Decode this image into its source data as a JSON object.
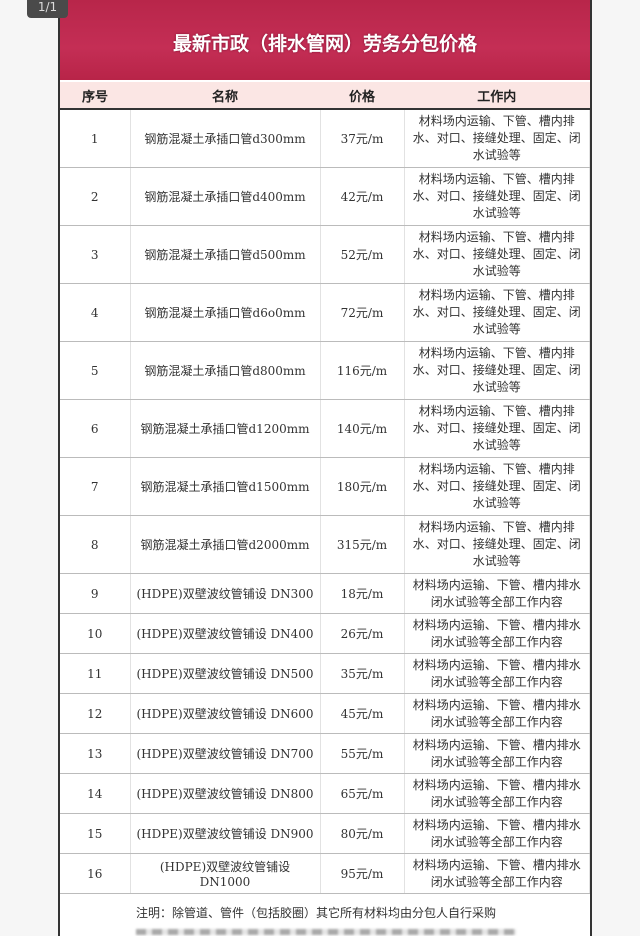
{
  "page_indicator": "1/1",
  "title": "最新市政（排水管网）劳务分包价格",
  "colors": {
    "title_band": "#c42e55",
    "header_bg": "#fbe6e4"
  },
  "columns": [
    "序号",
    "名称",
    "价格",
    "工作内"
  ],
  "rows": [
    {
      "no": "1",
      "name": "钢筋混凝土承插口管d300mm",
      "price": "37元/m",
      "work": "材料场内运输、下管、槽内排水、对口、接缝处理、固定、闭水试验等"
    },
    {
      "no": "2",
      "name": "钢筋混凝土承插口管d400mm",
      "price": "42元/m",
      "work": "材料场内运输、下管、槽内排水、对口、接缝处理、固定、闭水试验等"
    },
    {
      "no": "3",
      "name": "钢筋混凝土承插口管d500mm",
      "price": "52元/m",
      "work": "材料场内运输、下管、槽内排水、对口、接缝处理、固定、闭水试验等"
    },
    {
      "no": "4",
      "name": "钢筋混凝土承插口管d6o0mm",
      "price": "72元/m",
      "work": "材料场内运输、下管、槽内排水、对口、接缝处理、固定、闭水试验等"
    },
    {
      "no": "5",
      "name": "钢筋混凝土承插口管d800mm",
      "price": "116元/m",
      "work": "材料场内运输、下管、槽内排水、对口、接缝处理、固定、闭水试验等"
    },
    {
      "no": "6",
      "name": "钢筋混凝土承插口管d1200mm",
      "price": "140元/m",
      "work": "材料场内运输、下管、槽内排水、对口、接缝处理、固定、闭水试验等"
    },
    {
      "no": "7",
      "name": "钢筋混凝土承插口管d1500mm",
      "price": "180元/m",
      "work": "材料场内运输、下管、槽内排水、对口、接缝处理、固定、闭水试验等"
    },
    {
      "no": "8",
      "name": "钢筋混凝土承插口管d2000mm",
      "price": "315元/m",
      "work": "材料场内运输、下管、槽内排水、对口、接缝处理、固定、闭水试验等"
    },
    {
      "no": "9",
      "name": "(HDPE)双壁波纹管铺设 DN300",
      "price": "18元/m",
      "work": "材料场内运输、下管、槽内排水 闭水试验等全部工作内容"
    },
    {
      "no": "10",
      "name": "(HDPE)双壁波纹管铺设 DN400",
      "price": "26元/m",
      "work": "材料场内运输、下管、槽内排水 闭水试验等全部工作内容"
    },
    {
      "no": "11",
      "name": "(HDPE)双壁波纹管铺设 DN500",
      "price": "35元/m",
      "work": "材料场内运输、下管、槽内排水 闭水试验等全部工作内容"
    },
    {
      "no": "12",
      "name": "(HDPE)双壁波纹管铺设 DN600",
      "price": "45元/m",
      "work": "材料场内运输、下管、槽内排水 闭水试验等全部工作内容"
    },
    {
      "no": "13",
      "name": "(HDPE)双壁波纹管铺设 DN700",
      "price": "55元/m",
      "work": "材料场内运输、下管、槽内排水 闭水试验等全部工作内容"
    },
    {
      "no": "14",
      "name": "(HDPE)双壁波纹管铺设 DN800",
      "price": "65元/m",
      "work": "材料场内运输、下管、槽内排水 闭水试验等全部工作内容"
    },
    {
      "no": "15",
      "name": "(HDPE)双壁波纹管铺设 DN900",
      "price": "80元/m",
      "work": "材料场内运输、下管、槽内排水 闭水试验等全部工作内容"
    },
    {
      "no": "16",
      "name": "(HDPE)双壁波纹管铺设 DN1000",
      "price": "95元/m",
      "work": "材料场内运输、下管、槽内排水 闭水试验等全部工作内容"
    }
  ],
  "note": "注明：除管道、管件（包括胶圈）其它所有材料均由分包人自行采购"
}
